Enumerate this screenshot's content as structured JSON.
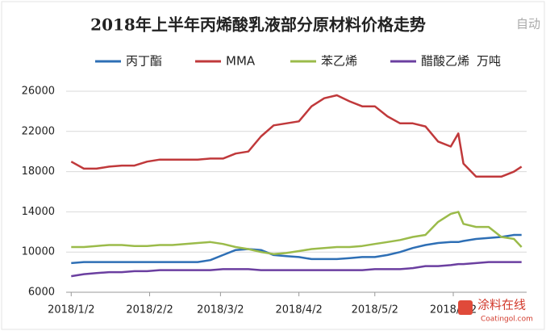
{
  "chart_data": {
    "type": "line",
    "title": "2018年上半年丙烯酸乳液部分原材料价格走势",
    "unit": "万吨",
    "x": [
      0,
      5,
      10,
      15,
      20,
      25,
      30,
      35,
      40,
      45,
      50,
      55,
      60,
      65,
      70,
      75,
      80,
      85,
      90,
      95,
      100,
      105,
      110,
      115,
      120,
      125,
      130,
      135,
      140,
      145,
      150,
      153,
      155,
      160,
      165,
      170,
      175,
      178
    ],
    "xlim": [
      -2,
      180
    ],
    "xticks": [
      {
        "value": 0,
        "label": "2018/1/2"
      },
      {
        "value": 31,
        "label": "2018/2/2"
      },
      {
        "value": 59,
        "label": "2018/3/2"
      },
      {
        "value": 90,
        "label": "2018/4/2"
      },
      {
        "value": 120,
        "label": "2018/5/2"
      },
      {
        "value": 151,
        "label": "2018/6/2"
      }
    ],
    "ylim": [
      6000,
      26000
    ],
    "yticks": [
      6000,
      10000,
      14000,
      18000,
      22000,
      26000
    ],
    "grid": true,
    "legend": "top",
    "series": [
      {
        "name": "丙丁酯",
        "color": "#2e6fb5",
        "values": [
          8900,
          9000,
          9000,
          9000,
          9000,
          9000,
          9000,
          9000,
          9000,
          9000,
          9000,
          9200,
          9700,
          10200,
          10300,
          10200,
          9700,
          9600,
          9500,
          9300,
          9300,
          9300,
          9400,
          9500,
          9500,
          9700,
          10000,
          10400,
          10700,
          10900,
          11000,
          11000,
          11100,
          11300,
          11400,
          11500,
          11700,
          11700
        ]
      },
      {
        "name": "MMA",
        "color": "#c0393b",
        "values": [
          19000,
          18300,
          18300,
          18500,
          18600,
          18600,
          19000,
          19200,
          19200,
          19200,
          19200,
          19300,
          19300,
          19800,
          20000,
          21500,
          22600,
          22800,
          23000,
          24500,
          25300,
          25600,
          25000,
          24500,
          24500,
          23500,
          22800,
          22800,
          22500,
          21000,
          20500,
          21800,
          18800,
          17500,
          17500,
          17500,
          18000,
          18500
        ]
      },
      {
        "name": "苯乙烯",
        "color": "#9bbb4a",
        "values": [
          10500,
          10500,
          10600,
          10700,
          10700,
          10600,
          10600,
          10700,
          10700,
          10800,
          10900,
          11000,
          10800,
          10500,
          10300,
          10000,
          9800,
          9900,
          10100,
          10300,
          10400,
          10500,
          10500,
          10600,
          10800,
          11000,
          11200,
          11500,
          11700,
          13000,
          13800,
          14000,
          12800,
          12500,
          12500,
          11500,
          11300,
          10500
        ]
      },
      {
        "name": "醋酸乙烯",
        "color": "#6b3fa0",
        "values": [
          7600,
          7800,
          7900,
          8000,
          8000,
          8100,
          8100,
          8200,
          8200,
          8200,
          8200,
          8200,
          8300,
          8300,
          8300,
          8200,
          8200,
          8200,
          8200,
          8200,
          8200,
          8200,
          8200,
          8200,
          8300,
          8300,
          8300,
          8400,
          8600,
          8600,
          8700,
          8800,
          8800,
          8900,
          9000,
          9000,
          9000,
          9000
        ]
      }
    ]
  },
  "watermark": {
    "top": "自动",
    "brand": "涂料在线",
    "url": "Coatingol.com"
  }
}
